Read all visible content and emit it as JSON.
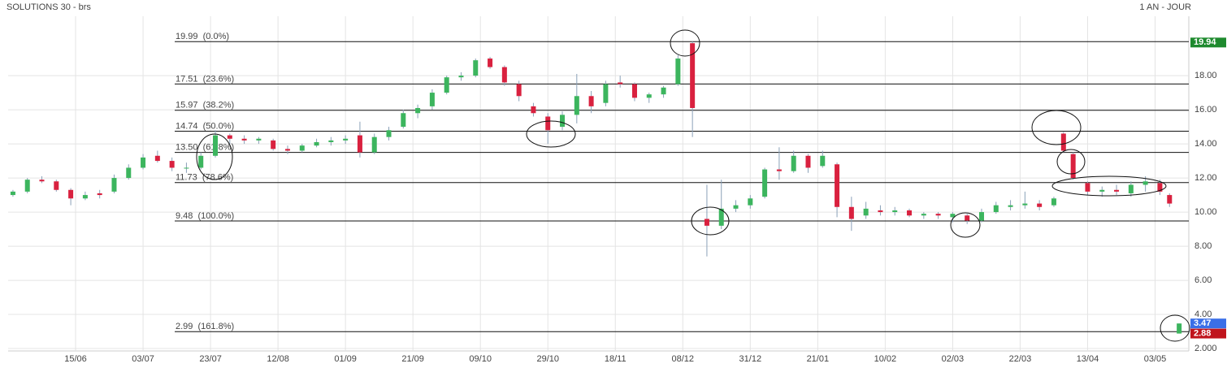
{
  "chart_data": {
    "type": "candlestick",
    "title": "SOLUTIONS 30 - brs",
    "period": "1 AN - JOUR",
    "up_color": "#3cb55e",
    "down_color": "#d9213f",
    "grid": true,
    "xlim": [
      0,
      245
    ],
    "xticks": [
      {
        "value": 14,
        "label": "15/06"
      },
      {
        "value": 28,
        "label": "03/07"
      },
      {
        "value": 42,
        "label": "23/07"
      },
      {
        "value": 56,
        "label": "12/08"
      },
      {
        "value": 70,
        "label": "01/09"
      },
      {
        "value": 84,
        "label": "21/09"
      },
      {
        "value": 98,
        "label": "09/10"
      },
      {
        "value": 112,
        "label": "29/10"
      },
      {
        "value": 126,
        "label": "18/11"
      },
      {
        "value": 140,
        "label": "08/12"
      },
      {
        "value": 154,
        "label": "31/12"
      },
      {
        "value": 168,
        "label": "21/01"
      },
      {
        "value": 182,
        "label": "10/02"
      },
      {
        "value": 196,
        "label": "02/03"
      },
      {
        "value": 210,
        "label": "22/03"
      },
      {
        "value": 224,
        "label": "13/04"
      },
      {
        "value": 238,
        "label": "03/05"
      }
    ],
    "ylim": [
      1.86,
      21.48
    ],
    "yticks": [
      {
        "value": 2,
        "label": "2.000"
      },
      {
        "value": 4,
        "label": "4.00"
      },
      {
        "value": 6,
        "label": "6.00"
      },
      {
        "value": 8,
        "label": "8.00"
      },
      {
        "value": 10,
        "label": "10.00"
      },
      {
        "value": 12,
        "label": "12.00"
      },
      {
        "value": 14,
        "label": "14.00"
      },
      {
        "value": 16,
        "label": "16.00"
      },
      {
        "value": 18,
        "label": "18.00"
      }
    ],
    "candles": {
      "x": [
        1,
        4,
        7,
        10,
        13,
        16,
        19,
        22,
        25,
        28,
        31,
        34,
        37,
        40,
        43,
        46,
        49,
        52,
        55,
        58,
        61,
        64,
        67,
        70,
        73,
        76,
        79,
        82,
        85,
        88,
        91,
        94,
        97,
        100,
        103,
        106,
        109,
        112,
        115,
        118,
        121,
        124,
        127,
        130,
        133,
        136,
        139,
        142,
        145,
        148,
        151,
        154,
        157,
        160,
        163,
        166,
        169,
        172,
        175,
        178,
        181,
        184,
        187,
        190,
        193,
        196,
        199,
        202,
        205,
        208,
        211,
        214,
        217,
        219,
        221,
        224,
        227,
        230,
        233,
        236,
        239,
        241,
        243
      ],
      "open": [
        11.0,
        11.2,
        11.9,
        11.8,
        11.3,
        10.8,
        11.1,
        11.2,
        12.0,
        12.6,
        13.3,
        13.0,
        12.6,
        12.6,
        13.3,
        14.5,
        14.3,
        14.2,
        14.2,
        13.7,
        13.6,
        13.9,
        14.1,
        14.2,
        14.5,
        13.5,
        14.4,
        15.0,
        15.8,
        16.2,
        17.0,
        17.9,
        18.0,
        19.0,
        18.5,
        17.5,
        16.2,
        15.6,
        15.0,
        15.7,
        16.8,
        16.4,
        17.6,
        17.5,
        16.7,
        16.9,
        17.5,
        19.9,
        9.6,
        9.2,
        10.2,
        10.4,
        10.9,
        12.5,
        12.4,
        13.3,
        12.7,
        12.8,
        10.3,
        9.8,
        10.1,
        10.0,
        10.1,
        9.8,
        9.9,
        9.7,
        9.8,
        9.5,
        10.0,
        10.3,
        10.4,
        10.5,
        10.4,
        14.6,
        13.4,
        11.7,
        11.2,
        11.3,
        11.1,
        11.6,
        11.7,
        11.0,
        2.88
      ],
      "high": [
        11.3,
        12.0,
        12.1,
        11.9,
        11.4,
        11.2,
        11.3,
        12.2,
        12.8,
        13.4,
        13.6,
        13.2,
        12.9,
        13.5,
        14.8,
        14.6,
        14.5,
        14.4,
        14.3,
        13.9,
        14.0,
        14.3,
        14.4,
        14.5,
        15.3,
        14.6,
        15.0,
        16.0,
        16.3,
        17.2,
        18.0,
        18.2,
        19.0,
        19.1,
        18.6,
        17.7,
        16.4,
        15.8,
        15.9,
        18.1,
        17.1,
        17.7,
        18.0,
        17.6,
        17.0,
        17.4,
        19.2,
        20.0,
        11.6,
        11.9,
        10.7,
        11.0,
        12.6,
        13.8,
        13.6,
        13.4,
        13.6,
        12.9,
        10.9,
        10.6,
        10.4,
        10.3,
        10.2,
        10.0,
        10.0,
        10.0,
        9.9,
        10.2,
        10.6,
        10.7,
        11.2,
        10.7,
        10.9,
        14.7,
        13.5,
        11.8,
        11.5,
        11.6,
        11.8,
        12.1,
        11.9,
        11.1,
        3.47
      ],
      "low": [
        10.9,
        11.1,
        11.7,
        11.2,
        10.4,
        10.7,
        10.8,
        11.1,
        11.9,
        12.5,
        12.9,
        12.4,
        12.3,
        12.5,
        13.2,
        14.0,
        14.0,
        14.0,
        13.6,
        13.4,
        13.5,
        13.8,
        13.9,
        14.0,
        13.2,
        13.4,
        14.2,
        14.9,
        15.5,
        16.0,
        16.9,
        17.7,
        17.9,
        18.4,
        17.4,
        16.5,
        15.6,
        14.0,
        14.8,
        15.2,
        15.8,
        16.2,
        17.3,
        16.5,
        16.4,
        16.7,
        17.4,
        14.4,
        7.4,
        9.0,
        10.0,
        10.2,
        10.8,
        11.9,
        12.3,
        12.3,
        12.6,
        9.7,
        8.9,
        9.6,
        9.8,
        9.8,
        9.7,
        9.6,
        9.6,
        9.4,
        9.3,
        9.4,
        9.9,
        10.1,
        10.2,
        10.1,
        10.3,
        13.5,
        11.9,
        11.0,
        10.9,
        11.0,
        10.9,
        11.2,
        11.0,
        10.3,
        2.88
      ],
      "close": [
        11.2,
        11.9,
        11.8,
        11.3,
        10.8,
        11.0,
        11.0,
        12.0,
        12.6,
        13.2,
        13.0,
        12.6,
        12.6,
        13.3,
        14.5,
        14.3,
        14.2,
        14.3,
        13.7,
        13.6,
        13.9,
        14.1,
        14.2,
        14.3,
        13.5,
        14.4,
        14.8,
        15.8,
        16.1,
        17.0,
        17.9,
        18.0,
        18.9,
        18.5,
        17.6,
        16.8,
        15.8,
        14.8,
        15.7,
        16.8,
        16.2,
        17.5,
        17.5,
        16.7,
        16.9,
        17.3,
        19.0,
        16.1,
        9.2,
        10.2,
        10.4,
        10.8,
        12.5,
        12.4,
        13.3,
        12.6,
        13.3,
        10.3,
        9.6,
        10.2,
        10.0,
        10.1,
        9.8,
        9.9,
        9.8,
        9.9,
        9.5,
        10.0,
        10.4,
        10.4,
        10.5,
        10.3,
        10.8,
        13.6,
        12.0,
        11.2,
        11.3,
        11.2,
        11.6,
        11.8,
        11.2,
        10.5,
        3.47
      ]
    },
    "fib_levels": [
      {
        "value": 19.99,
        "label": "19.99  (0.0%)"
      },
      {
        "value": 17.51,
        "label": "17.51  (23.6%)"
      },
      {
        "value": 15.97,
        "label": "15.97  (38.2%)"
      },
      {
        "value": 14.74,
        "label": "14.74  (50.0%)"
      },
      {
        "value": 13.5,
        "label": "13.50  (61.8%)"
      },
      {
        "value": 11.73,
        "label": "11.73  (78.6%)"
      },
      {
        "value": 9.48,
        "label": "9.48  (100.0%)"
      },
      {
        "value": 2.99,
        "label": "2.99  (161.8%)"
      }
    ],
    "price_labels": [
      {
        "value": 19.94,
        "label": "19.94",
        "color": "#1e8a2e"
      },
      {
        "value": 3.47,
        "label": "3.47",
        "color": "#3a6fe8"
      },
      {
        "value": 2.88,
        "label": "2.88",
        "color": "#c0141c"
      }
    ]
  }
}
